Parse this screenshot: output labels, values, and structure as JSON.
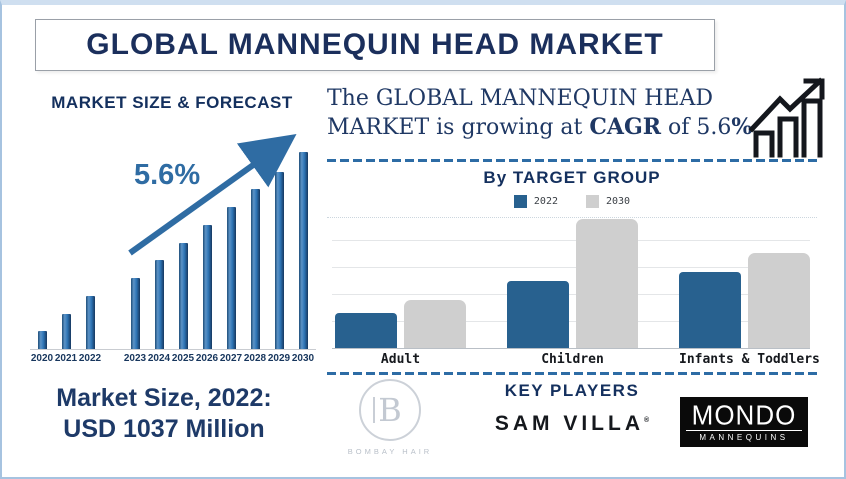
{
  "title": "GLOBAL MANNEQUIN HEAD MARKET",
  "left_panel": {
    "heading": "MARKET SIZE & FORECAST",
    "growth_label": "5.6%",
    "market_size": {
      "line1": "Market Size, 2022:",
      "line2": "USD 1037 Million"
    }
  },
  "right_panel": {
    "cagr_sentence": {
      "line1": "The GLOBAL MANNEQUIN HEAD",
      "line2_pre": "MARKET is growing at ",
      "line2_bold": "CAGR",
      "line2_mid": " of 5.6",
      "line2_pct": "%"
    },
    "target_group": {
      "heading": "By TARGET GROUP"
    },
    "key_players": {
      "heading": "KEY PLAYERS",
      "logos": [
        {
          "name": "Bombay Hair",
          "monogram": "B",
          "text": "BOMBAY HAIR"
        },
        {
          "name": "Sam Villa",
          "text": "SAM VILLA",
          "reg": "®"
        },
        {
          "name": "Mondo Mannequins",
          "line1": "MONDO",
          "line2": "MANNEQUINS"
        }
      ]
    }
  },
  "icons": {
    "trend_icon": "rising-bar-chart-with-arrow"
  },
  "colors": {
    "navy_text": "#1b2f5c",
    "steel_blue": "#2f6ca3",
    "bar_blue_2022": "#28618f",
    "bar_gray_2030": "#cfcfcf",
    "dash_rule": "#2d6ca5",
    "canvas_border": "#a6c3e0"
  },
  "chart_data": [
    {
      "type": "bar",
      "title": "MARKET SIZE & FORECAST",
      "x": [
        "2020",
        "2021",
        "2022",
        "2023",
        "2024",
        "2025",
        "2026",
        "2027",
        "2028",
        "2029",
        "2030"
      ],
      "values_relative_pct": [
        9,
        18,
        27,
        36,
        45,
        54,
        63,
        72,
        81,
        90,
        100
      ],
      "annotation": "5.6%",
      "bar_color": "#2e75b6",
      "ylabel": "",
      "note": "no y-axis shown; 2022 value stated as USD 1037 Million"
    },
    {
      "type": "bar",
      "title": "By TARGET GROUP",
      "categories": [
        "Adult",
        "Children",
        "Infants & Toddlers"
      ],
      "series": [
        {
          "name": "2022",
          "color": "#28618f",
          "values_relative_pct": [
            27,
            52,
            59
          ]
        },
        {
          "name": "2030",
          "color": "#cfcfcf",
          "values_relative_pct": [
            37,
            100,
            74
          ]
        }
      ],
      "legend_position": "top",
      "grid": "horizontal",
      "note": "no y-axis values shown"
    }
  ]
}
